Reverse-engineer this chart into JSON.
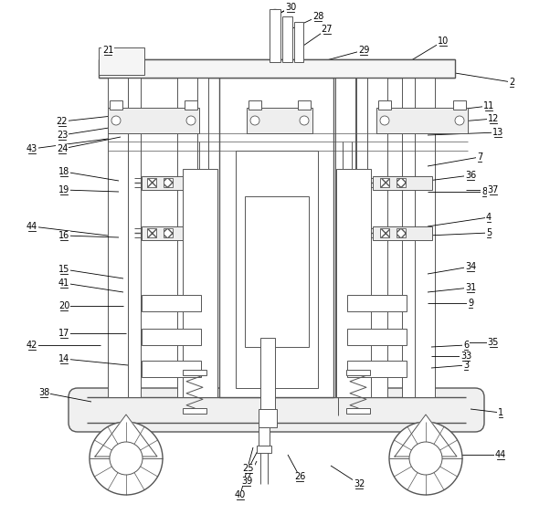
{
  "fig_width": 6.02,
  "fig_height": 5.75,
  "dpi": 100,
  "bg_color": "#ffffff",
  "lc": "#555555",
  "lw": 0.7,
  "lw2": 1.0
}
